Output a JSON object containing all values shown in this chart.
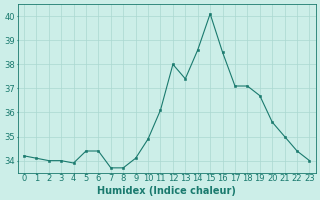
{
  "x": [
    0,
    1,
    2,
    3,
    4,
    5,
    6,
    7,
    8,
    9,
    10,
    11,
    12,
    13,
    14,
    15,
    16,
    17,
    18,
    19,
    20,
    21,
    22,
    23
  ],
  "y": [
    34.2,
    34.1,
    34.0,
    34.0,
    33.9,
    34.4,
    34.4,
    33.7,
    33.7,
    34.1,
    34.9,
    36.1,
    38.0,
    37.4,
    38.6,
    40.1,
    38.5,
    37.1,
    37.1,
    36.7,
    35.6,
    35.0,
    34.4,
    34.0
  ],
  "line_color": "#1a7a6e",
  "marker_color": "#1a7a6e",
  "bg_color": "#cceee8",
  "grid_color": "#aad8d0",
  "xlabel": "Humidex (Indice chaleur)",
  "ylim": [
    33.5,
    40.5
  ],
  "xlim": [
    -0.5,
    23.5
  ],
  "yticks": [
    34,
    35,
    36,
    37,
    38,
    39,
    40
  ],
  "xtick_labels": [
    "0",
    "1",
    "2",
    "3",
    "4",
    "5",
    "6",
    "7",
    "8",
    "9",
    "10",
    "11",
    "12",
    "13",
    "14",
    "15",
    "16",
    "17",
    "18",
    "19",
    "20",
    "21",
    "22",
    "23"
  ],
  "label_fontsize": 7,
  "tick_fontsize": 6
}
